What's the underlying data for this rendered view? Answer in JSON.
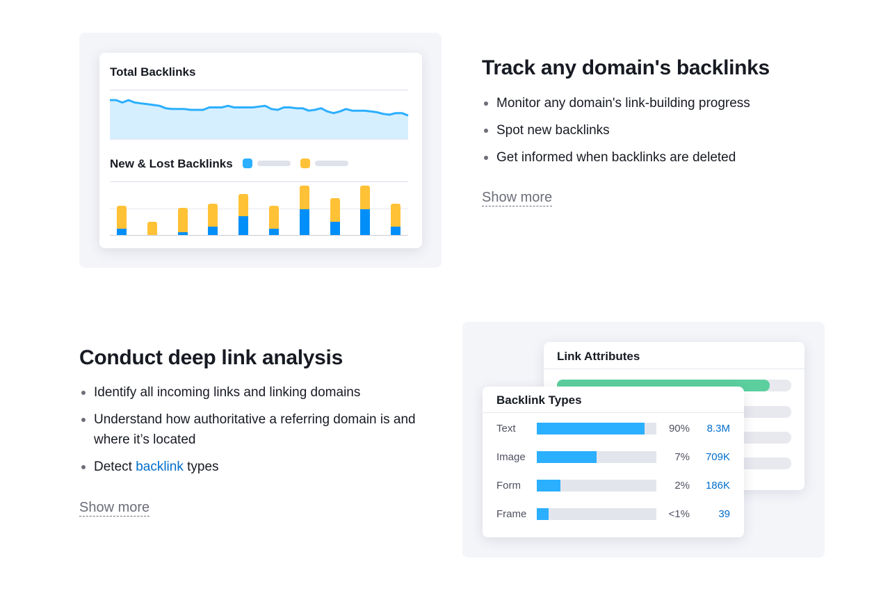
{
  "section1": {
    "heading": "Track any domain's backlinks",
    "bullets": [
      "Monitor any domain's link-building progress",
      "Spot new backlinks",
      "Get informed when backlinks are deleted"
    ],
    "show_more": "Show more"
  },
  "section2": {
    "heading": "Conduct deep link analysis",
    "bullets": [
      "Identify all incoming links and linking domains",
      "Understand how authoritative a referring domain is and where it’s located"
    ],
    "bullet3_prefix": "Detect ",
    "bullet3_link": "backlink",
    "bullet3_suffix": " types",
    "show_more": "Show more"
  },
  "total_backlinks_card": {
    "title": "Total Backlinks",
    "line_color": "#2bafff",
    "area_color": "#d6efff"
  },
  "new_lost_card": {
    "title": "New & Lost Backlinks",
    "colors": {
      "new": "#008ff8",
      "lost": "#ffc136"
    }
  },
  "link_attributes_card": {
    "title": "Link Attributes",
    "accent": "#5ccf9f"
  },
  "backlink_types_card": {
    "title": "Backlink Types",
    "rows": [
      {
        "label": "Text",
        "fill": 0.9,
        "pct": "90%",
        "value": "8.3M"
      },
      {
        "label": "Image",
        "fill": 0.5,
        "pct": "7%",
        "value": "709K"
      },
      {
        "label": "Form",
        "fill": 0.2,
        "pct": "2%",
        "value": "186K"
      },
      {
        "label": "Frame",
        "fill": 0.1,
        "pct": "<1%",
        "value": "39"
      }
    ]
  },
  "chart_data": [
    {
      "type": "area",
      "title": "Total Backlinks",
      "x": [
        0,
        1,
        2,
        3,
        4,
        5,
        6,
        7,
        8,
        9,
        10,
        11,
        12,
        13,
        14,
        15,
        16,
        17,
        18,
        19,
        20,
        21,
        22,
        23,
        24,
        25,
        26,
        27,
        28,
        29,
        30,
        31,
        32,
        33,
        34,
        35,
        36,
        37,
        38,
        39,
        40,
        41,
        42,
        43,
        44,
        45,
        46,
        47,
        48
      ],
      "values": [
        48,
        48,
        45,
        48,
        45,
        44,
        43,
        42,
        41,
        38,
        37,
        37,
        37,
        36,
        36,
        36,
        39,
        39,
        39,
        41,
        39,
        39,
        39,
        39,
        40,
        41,
        37,
        36,
        39,
        39,
        38,
        38,
        35,
        36,
        38,
        34,
        32,
        34,
        37,
        35,
        35,
        35,
        34,
        33,
        31,
        30,
        32,
        32,
        29
      ],
      "ylim": [
        0,
        60
      ],
      "grid": true
    },
    {
      "type": "bar",
      "title": "New & Lost Backlinks",
      "stacked": true,
      "categories": [
        "1",
        "2",
        "3",
        "4",
        "5",
        "6",
        "7",
        "8",
        "9",
        "10",
        "11"
      ],
      "series": [
        {
          "values": [
            8,
            0,
            4,
            11,
            23,
            8,
            32,
            17,
            32,
            11,
            0
          ]
        },
        {
          "values": [
            28,
            17,
            29,
            27,
            27,
            28,
            28,
            28,
            28,
            27,
            0
          ]
        }
      ],
      "ylim": [
        0,
        64
      ],
      "grid": true
    }
  ]
}
